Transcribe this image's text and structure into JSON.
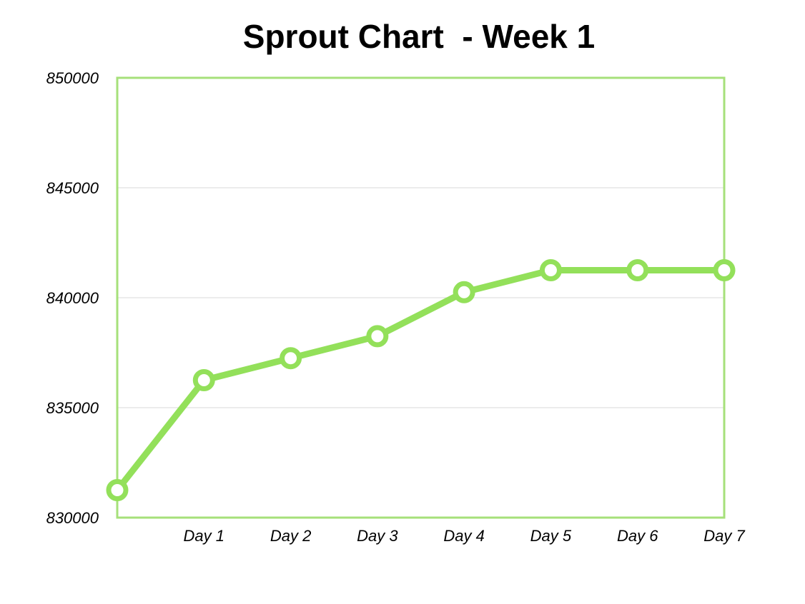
{
  "chart_data": {
    "type": "line",
    "title": "Sprout Chart  - Week 1",
    "xlabel": "",
    "ylabel": "",
    "ylim": [
      830000,
      850000
    ],
    "yticks": [
      830000,
      835000,
      840000,
      845000,
      850000
    ],
    "grid": true,
    "x_tick_labels": [
      "",
      "Day 1",
      "Day 2",
      "Day 3",
      "Day 4",
      "Day 5",
      "Day 6",
      "Day 7"
    ],
    "values": [
      831250,
      836250,
      837250,
      838250,
      840250,
      841250,
      841250,
      841250
    ],
    "colors": {
      "line": "#93e05a",
      "frame": "#a6e07a",
      "grid": "#d9d9d9",
      "marker_fill": "#ffffff"
    }
  }
}
